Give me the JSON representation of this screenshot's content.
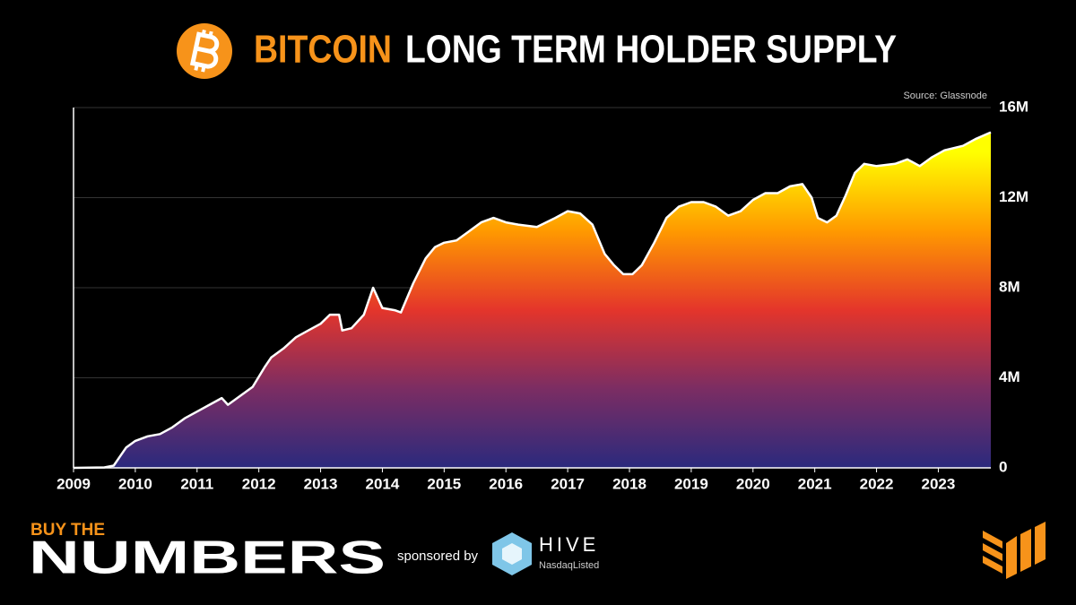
{
  "chart_data": {
    "type": "area",
    "title_highlight": "BITCOIN",
    "title": "LONG TERM HOLDER SUPPLY",
    "source": "Source: Glassnode",
    "x": [
      2009.0,
      2009.5,
      2009.65,
      2009.75,
      2009.85,
      2010.0,
      2010.2,
      2010.4,
      2010.6,
      2010.8,
      2011.0,
      2011.2,
      2011.4,
      2011.5,
      2011.7,
      2011.9,
      2012.1,
      2012.2,
      2012.4,
      2012.6,
      2012.8,
      2013.0,
      2013.15,
      2013.3,
      2013.35,
      2013.5,
      2013.7,
      2013.85,
      2014.0,
      2014.2,
      2014.3,
      2014.5,
      2014.7,
      2014.85,
      2015.0,
      2015.2,
      2015.4,
      2015.6,
      2015.8,
      2016.0,
      2016.2,
      2016.5,
      2016.8,
      2017.0,
      2017.2,
      2017.4,
      2017.6,
      2017.75,
      2017.9,
      2018.05,
      2018.2,
      2018.4,
      2018.6,
      2018.8,
      2019.0,
      2019.2,
      2019.4,
      2019.6,
      2019.8,
      2020.0,
      2020.2,
      2020.4,
      2020.6,
      2020.8,
      2020.95,
      2021.05,
      2021.2,
      2021.35,
      2021.5,
      2021.65,
      2021.8,
      2022.0,
      2022.3,
      2022.5,
      2022.7,
      2022.9,
      2023.1,
      2023.4,
      2023.6,
      2023.85
    ],
    "values": [
      0,
      20000,
      100000,
      500000,
      900000,
      1200000,
      1400000,
      1500000,
      1800000,
      2200000,
      2500000,
      2800000,
      3100000,
      2800000,
      3200000,
      3600000,
      4500000,
      4900000,
      5300000,
      5800000,
      6100000,
      6400000,
      6800000,
      6800000,
      6100000,
      6200000,
      6800000,
      8000000,
      7100000,
      7000000,
      6900000,
      8200000,
      9300000,
      9800000,
      10000000,
      10100000,
      10500000,
      10900000,
      11100000,
      10900000,
      10800000,
      10700000,
      11100000,
      11400000,
      11300000,
      10800000,
      9500000,
      9000000,
      8600000,
      8600000,
      9000000,
      10000000,
      11100000,
      11600000,
      11800000,
      11800000,
      11600000,
      11200000,
      11400000,
      11900000,
      12200000,
      12200000,
      12500000,
      12600000,
      12000000,
      11100000,
      10900000,
      11200000,
      12100000,
      13100000,
      13500000,
      13400000,
      13500000,
      13700000,
      13400000,
      13800000,
      14100000,
      14300000,
      14600000,
      14900000
    ],
    "color": "#ffffff",
    "fill_gradient": [
      "#2b2a7d",
      "#7b2d63",
      "#e4352b",
      "#ff9900",
      "#ffff00"
    ],
    "xlim": [
      2009,
      2023.85
    ],
    "xticks": [
      2009,
      2010,
      2011,
      2012,
      2013,
      2014,
      2015,
      2016,
      2017,
      2018,
      2019,
      2020,
      2021,
      2022,
      2023
    ],
    "ylim": [
      0,
      16000000
    ],
    "yticks": [
      0,
      {
        "value": 4000000,
        "label": "4M"
      },
      {
        "value": 8000000,
        "label": "8M"
      },
      {
        "value": 12000000,
        "label": "12M"
      },
      {
        "value": 16000000,
        "label": "16M"
      }
    ],
    "grid": true
  },
  "branding": {
    "brand_top": "BUY THE",
    "brand_main": "NUMBERS",
    "sponsor_text": "sponsored by",
    "sponsor_name": "HIVE",
    "sponsor_sub": "NasdaqListed"
  }
}
